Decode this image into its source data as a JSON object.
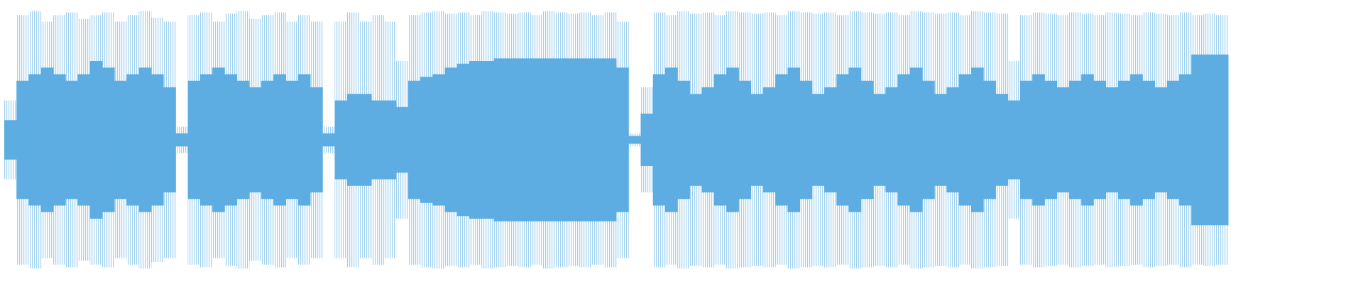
{
  "chart_data": {
    "type": "waveform",
    "ylim": [
      -1,
      1
    ],
    "series": [
      {
        "color": "#9fd0ef",
        "values": [
          0.3,
          0.95,
          0.98,
          0.9,
          0.95,
          0.97,
          0.92,
          0.95,
          0.97,
          0.9,
          0.95,
          0.98,
          0.93,
          0.9,
          0.1,
          0.95,
          0.97,
          0.9,
          0.96,
          0.98,
          0.92,
          0.95,
          0.97,
          0.9,
          0.95,
          0.9,
          0.1,
          0.9,
          0.97,
          0.9,
          0.95,
          0.9,
          0.6,
          0.95,
          0.97,
          0.98,
          0.96,
          0.97,
          0.95,
          0.98,
          0.97,
          0.96,
          0.97,
          0.95,
          0.98,
          0.97,
          0.96,
          0.97,
          0.95,
          0.97,
          0.9,
          0.05,
          0.4,
          0.97,
          0.95,
          0.98,
          0.96,
          0.97,
          0.95,
          0.98,
          0.97,
          0.96,
          0.97,
          0.95,
          0.98,
          0.97,
          0.96,
          0.97,
          0.95,
          0.98,
          0.97,
          0.96,
          0.97,
          0.95,
          0.98,
          0.97,
          0.96,
          0.97,
          0.95,
          0.98,
          0.97,
          0.96,
          0.6,
          0.95,
          0.97,
          0.96,
          0.95,
          0.97,
          0.96,
          0.95,
          0.97,
          0.96,
          0.95,
          0.97,
          0.96,
          0.95,
          0.97,
          0.95,
          0.96,
          0.95
        ]
      },
      {
        "color": "#5dade2",
        "values": [
          0.15,
          0.45,
          0.5,
          0.55,
          0.5,
          0.45,
          0.5,
          0.6,
          0.55,
          0.45,
          0.5,
          0.55,
          0.5,
          0.4,
          0.05,
          0.45,
          0.5,
          0.55,
          0.5,
          0.45,
          0.4,
          0.45,
          0.5,
          0.45,
          0.5,
          0.4,
          0.05,
          0.3,
          0.35,
          0.35,
          0.3,
          0.3,
          0.25,
          0.45,
          0.48,
          0.5,
          0.55,
          0.58,
          0.6,
          0.6,
          0.62,
          0.62,
          0.62,
          0.62,
          0.62,
          0.62,
          0.62,
          0.62,
          0.62,
          0.62,
          0.55,
          0.03,
          0.2,
          0.5,
          0.55,
          0.45,
          0.35,
          0.4,
          0.5,
          0.55,
          0.45,
          0.35,
          0.4,
          0.5,
          0.55,
          0.45,
          0.35,
          0.4,
          0.5,
          0.55,
          0.45,
          0.35,
          0.4,
          0.5,
          0.55,
          0.45,
          0.35,
          0.4,
          0.5,
          0.55,
          0.45,
          0.35,
          0.3,
          0.45,
          0.5,
          0.45,
          0.4,
          0.45,
          0.5,
          0.45,
          0.4,
          0.45,
          0.5,
          0.45,
          0.4,
          0.45,
          0.5,
          0.65,
          0.65,
          0.65
        ]
      }
    ]
  }
}
